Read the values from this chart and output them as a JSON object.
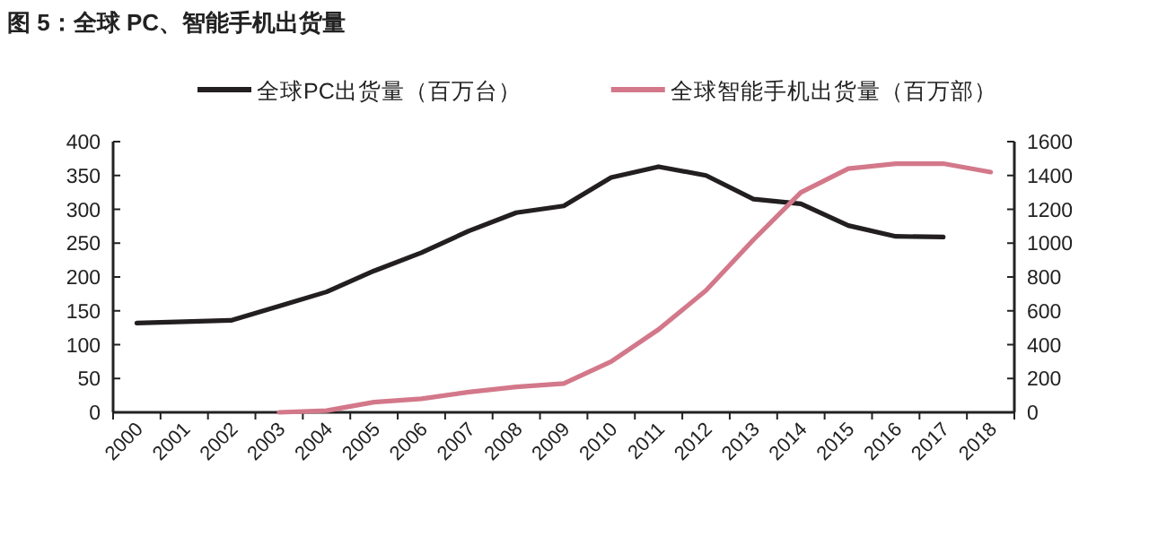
{
  "chart_data": {
    "type": "line",
    "title": "图 5：全球 PC、智能手机出货量",
    "categories": [
      "2000",
      "2001",
      "2002",
      "2003",
      "2004",
      "2005",
      "2006",
      "2007",
      "2008",
      "2009",
      "2010",
      "2011",
      "2012",
      "2013",
      "2014",
      "2015",
      "2016",
      "2017",
      "2018"
    ],
    "series": [
      {
        "name": "全球PC出货量（百万台）",
        "color": "#231f20",
        "values": [
          132,
          134,
          136,
          157,
          178,
          209,
          236,
          268,
          295,
          305,
          347,
          363,
          350,
          315,
          308,
          276,
          260,
          259,
          null
        ]
      },
      {
        "name": "全球智能手机出货量（百万部）",
        "color": "#d3788a",
        "axis": "y2",
        "values": [
          null,
          null,
          null,
          0,
          10,
          60,
          80,
          120,
          150,
          170,
          300,
          490,
          720,
          1020,
          1300,
          1440,
          1470,
          1470,
          1420
        ]
      }
    ],
    "ylim": [
      0,
      400
    ],
    "yticks": [
      0,
      50,
      100,
      150,
      200,
      250,
      300,
      350,
      400
    ],
    "y2lim": [
      0,
      1600
    ],
    "y2ticks": [
      0,
      200,
      400,
      600,
      800,
      1000,
      1200,
      1400,
      1600
    ],
    "legend": "top",
    "grid": false
  }
}
